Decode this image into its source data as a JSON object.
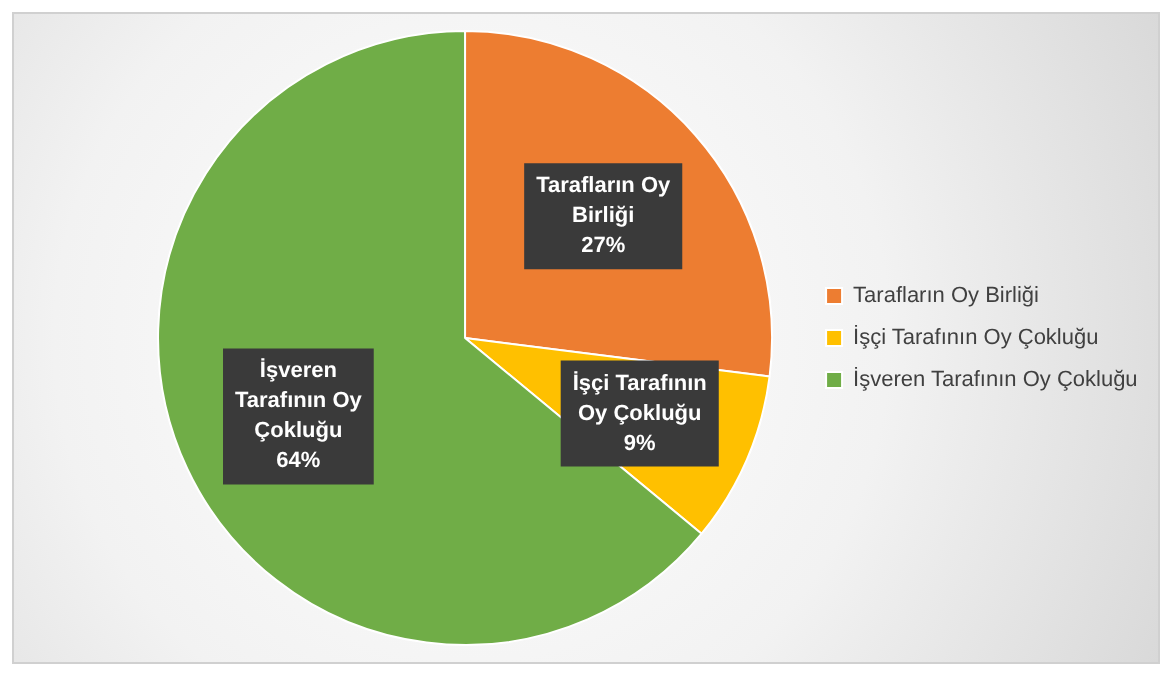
{
  "chart_data": {
    "type": "pie",
    "categories": [
      "Tarafların Oy Birliği",
      "İşçi Tarafının Oy Çokluğu",
      "İşveren Tarafının Oy Çokluğu"
    ],
    "values": [
      27,
      9,
      64
    ],
    "colors": [
      "#ed7d31",
      "#ffc000",
      "#70ad47"
    ],
    "value_labels": [
      "27%",
      "9%",
      "64%"
    ],
    "legend": "right"
  }
}
